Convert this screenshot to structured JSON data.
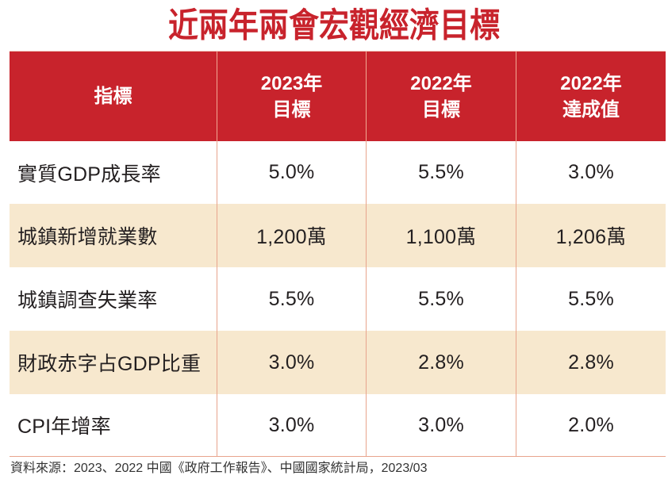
{
  "title": "近兩年兩會宏觀經濟目標",
  "colors": {
    "accent": "#c8232c",
    "row_highlight": "#f7e8ce",
    "rule": "#e8a48d",
    "text": "#231f20"
  },
  "table": {
    "headers": [
      {
        "line1": "指標"
      },
      {
        "line1": "2023年",
        "line2": "目標"
      },
      {
        "line1": "2022年",
        "line2": "目標"
      },
      {
        "line1": "2022年",
        "line2": "達成值"
      }
    ],
    "rows": [
      {
        "indicator": "實質GDP成長率",
        "target_2023": "5.0%",
        "target_2022": "5.5%",
        "actual_2022": "3.0%"
      },
      {
        "indicator": "城鎮新增就業數",
        "target_2023": "1,200萬",
        "target_2022": "1,100萬",
        "actual_2022": "1,206萬"
      },
      {
        "indicator": "城鎮調查失業率",
        "target_2023": "5.5%",
        "target_2022": "5.5%",
        "actual_2022": "5.5%"
      },
      {
        "indicator": "財政赤字占GDP比重",
        "target_2023": "3.0%",
        "target_2022": "2.8%",
        "actual_2022": "2.8%"
      },
      {
        "indicator": "CPI年增率",
        "target_2023": "3.0%",
        "target_2022": "3.0%",
        "actual_2022": "2.0%"
      }
    ]
  },
  "footer": {
    "source": "資料來源：2023、2022 中國《政府工作報告》、中國國家統計局，2023/03"
  },
  "chart_data": {
    "type": "table",
    "title": "近兩年兩會宏觀經濟目標",
    "columns": [
      "指標",
      "2023年目標",
      "2022年目標",
      "2022年達成值"
    ],
    "rows": [
      [
        "實質GDP成長率",
        "5.0%",
        "5.5%",
        "3.0%"
      ],
      [
        "城鎮新增就業數",
        "1,200萬",
        "1,100萬",
        "1,206萬"
      ],
      [
        "城鎮調查失業率",
        "5.5%",
        "5.5%",
        "5.5%"
      ],
      [
        "財政赤字占GDP比重",
        "3.0%",
        "2.8%",
        "2.8%"
      ],
      [
        "CPI年增率",
        "3.0%",
        "3.0%",
        "2.0%"
      ]
    ],
    "source": "資料來源：2023、2022 中國《政府工作報告》、中國國家統計局，2023/03"
  }
}
